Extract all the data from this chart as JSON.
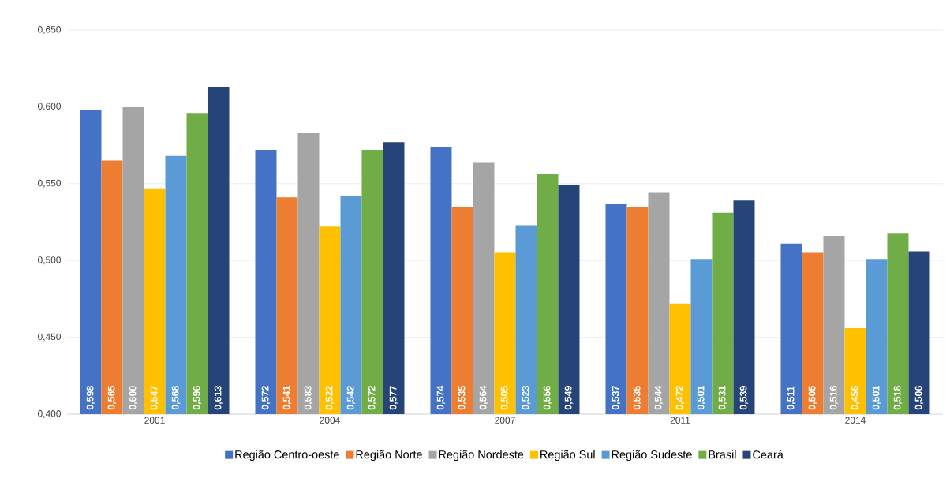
{
  "chart_data": {
    "type": "bar",
    "categories": [
      "2001",
      "2004",
      "2007",
      "2011",
      "2014"
    ],
    "series": [
      {
        "name": "Região Centro-oeste",
        "color": "#4472c4",
        "values": [
          0.598,
          0.572,
          0.574,
          0.537,
          0.511
        ],
        "value_labels": [
          "0,598",
          "0,572",
          "0,574",
          "0,537",
          "0,511"
        ]
      },
      {
        "name": "Região Norte",
        "color": "#ed7d31",
        "values": [
          0.565,
          0.541,
          0.535,
          0.535,
          0.505
        ],
        "value_labels": [
          "0,565",
          "0,541",
          "0,535",
          "0,535",
          "0,505"
        ]
      },
      {
        "name": "Região Nordeste",
        "color": "#a5a5a5",
        "values": [
          0.6,
          0.583,
          0.564,
          0.544,
          0.516
        ],
        "value_labels": [
          "0,600",
          "0,583",
          "0,564",
          "0,544",
          "0,516"
        ]
      },
      {
        "name": "Região Sul",
        "color": "#ffc000",
        "values": [
          0.547,
          0.522,
          0.505,
          0.472,
          0.456
        ],
        "value_labels": [
          "0,547",
          "0,522",
          "0,505",
          "0,472",
          "0,456"
        ]
      },
      {
        "name": "Região Sudeste",
        "color": "#5b9bd5",
        "values": [
          0.568,
          0.542,
          0.523,
          0.501,
          0.501
        ],
        "value_labels": [
          "0,568",
          "0,542",
          "0,523",
          "0,501",
          "0,501"
        ]
      },
      {
        "name": "Brasil",
        "color": "#70ad47",
        "values": [
          0.596,
          0.572,
          0.556,
          0.531,
          0.518
        ],
        "value_labels": [
          "0,596",
          "0,572",
          "0,556",
          "0,531",
          "0,518"
        ]
      },
      {
        "name": "Ceará",
        "color": "#264478",
        "values": [
          0.613,
          0.577,
          0.549,
          0.539,
          0.506
        ],
        "value_labels": [
          "0,613",
          "0,577",
          "0,549",
          "0,539",
          "0,506"
        ]
      }
    ],
    "ylim": [
      0.4,
      0.65
    ],
    "yticks": [
      {
        "value": 0.4,
        "label": "0,400"
      },
      {
        "value": 0.45,
        "label": "0,450"
      },
      {
        "value": 0.5,
        "label": "0,500"
      },
      {
        "value": 0.55,
        "label": "0,550"
      },
      {
        "value": 0.6,
        "label": "0,600"
      },
      {
        "value": 0.65,
        "label": "0,650"
      }
    ],
    "grid": "y",
    "legend": "bottom"
  }
}
